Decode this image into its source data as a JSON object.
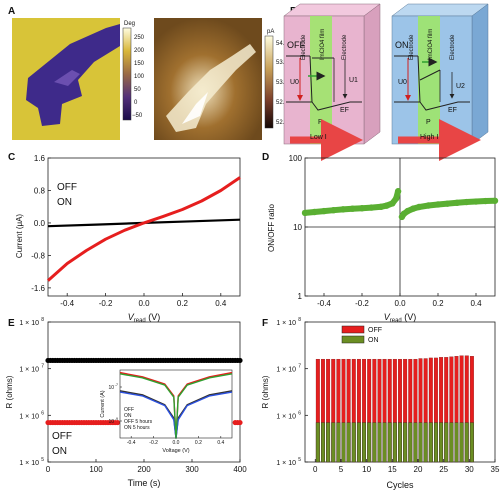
{
  "panel_letters": [
    "A",
    "B",
    "C",
    "D",
    "E",
    "F"
  ],
  "panel_a": {
    "phase_colorbar": {
      "unit": "Deg",
      "ticks": [
        "250",
        "200",
        "150",
        "100",
        "50",
        "0",
        "−50"
      ]
    },
    "current_colorbar": {
      "unit": "pA",
      "ticks": [
        "54.0",
        "53.5",
        "53.0",
        "52.5",
        "52.0"
      ]
    }
  },
  "panel_b": {
    "off": {
      "state": "OFF",
      "layers": [
        "Electrode",
        "ImClO4 film",
        "Electrode"
      ],
      "u0": "U0",
      "u1": "U1",
      "ef": "EF",
      "p": "P",
      "current": "Low I",
      "fill_color": "#e8b4cf"
    },
    "on": {
      "state": "ON",
      "layers": [
        "Electrode",
        "ImClO4 film",
        "Electrode"
      ],
      "u0": "U0",
      "u2": "U2",
      "ef": "EF",
      "p": "P",
      "current": "High I",
      "fill_color": "#9cc4e8"
    },
    "accent_green": "#9ee56a",
    "arrow_red": "#e84545"
  },
  "chart_data": [
    {
      "panel": "C",
      "type": "line",
      "xlabel": "V",
      "xlabel_sub": "read",
      "xlabel_unit": " (V)",
      "ylabel": "Current (μA)",
      "xlim": [
        -0.5,
        0.5
      ],
      "ylim": [
        -1.8,
        1.6
      ],
      "xticks": [
        "-0.4",
        "-0.2",
        "0.0",
        "0.2",
        "0.4"
      ],
      "yticks": [
        "1.6",
        "0.8",
        "0.0",
        "-0.8",
        "-1.6"
      ],
      "legend": [
        "OFF",
        "ON"
      ],
      "series": [
        {
          "name": "OFF",
          "color": "#000000",
          "x": [
            -0.5,
            -0.25,
            0.0,
            0.25,
            0.5
          ],
          "y": [
            -0.08,
            -0.04,
            0.0,
            0.04,
            0.08
          ]
        },
        {
          "name": "ON",
          "color": "#e61e1e",
          "x": [
            -0.5,
            -0.4,
            -0.3,
            -0.2,
            -0.1,
            0.0,
            0.1,
            0.2,
            0.3,
            0.4,
            0.5
          ],
          "y": [
            -1.42,
            -1.0,
            -0.68,
            -0.4,
            -0.18,
            0.0,
            0.16,
            0.33,
            0.54,
            0.8,
            1.12
          ]
        }
      ]
    },
    {
      "panel": "D",
      "type": "scatter",
      "xlabel": "V",
      "xlabel_sub": "read",
      "xlabel_unit": " (V)",
      "ylabel": "ON/OFF ratio",
      "xlim": [
        -0.5,
        0.5
      ],
      "ylim": [
        1,
        100
      ],
      "yscale": "log",
      "xticks": [
        "-0.4",
        "-0.2",
        "0.0",
        "0.2",
        "0.4"
      ],
      "yticks": [
        "100",
        "10",
        "1"
      ],
      "series": [
        {
          "color": "#5aaf32",
          "x": [
            -0.5,
            -0.45,
            -0.4,
            -0.35,
            -0.3,
            -0.25,
            -0.2,
            -0.15,
            -0.1,
            -0.07,
            -0.04,
            -0.02,
            -0.01
          ],
          "y": [
            16,
            16.5,
            17,
            17.5,
            18,
            18.4,
            18.7,
            19.1,
            19.6,
            20.4,
            22,
            26,
            33
          ]
        },
        {
          "color": "#5aaf32",
          "x": [
            0.01,
            0.02,
            0.04,
            0.07,
            0.1,
            0.15,
            0.2,
            0.25,
            0.3,
            0.35,
            0.4,
            0.45,
            0.5
          ],
          "y": [
            14,
            15.5,
            17,
            18.5,
            19.5,
            20.5,
            21.2,
            21.8,
            22.4,
            23,
            23.4,
            23.8,
            24
          ]
        }
      ]
    },
    {
      "panel": "E",
      "type": "scatter",
      "xlabel": "Time (s)",
      "ylabel": "R (ohms)",
      "xlim": [
        0,
        400
      ],
      "ylim": [
        100000,
        100000000
      ],
      "yscale": "log",
      "xticks": [
        "0",
        "100",
        "200",
        "300",
        "400"
      ],
      "yticks": [
        "1 × 10",
        "1 × 10",
        "1 × 10",
        "1 × 10"
      ],
      "ytick_exponents": [
        "8",
        "7",
        "6",
        "5"
      ],
      "legend": [
        "OFF",
        "ON"
      ],
      "series": [
        {
          "name": "OFF",
          "color": "#000000",
          "x": [
            0,
            400
          ],
          "y": [
            15000000,
            15000000
          ]
        },
        {
          "name": "ON",
          "color": "#e61e1e",
          "x": [
            0,
            400
          ],
          "y": [
            700000,
            700000
          ]
        }
      ],
      "inset": {
        "type": "line",
        "xlabel": "Voltage (V)",
        "ylabel": "Current (A)",
        "xlim": [
          -0.5,
          0.5
        ],
        "ylim": [
          1e-10,
          1e-06
        ],
        "yscale": "log",
        "xticks": [
          "-0.4",
          "-0.2",
          "0.0",
          "0.2",
          "0.4"
        ],
        "yticks": [
          "10",
          "10"
        ],
        "ytick_exponents": [
          "-7",
          "-9"
        ],
        "legend": [
          "OFF",
          "ON",
          "OFF 5 hours",
          "ON  5 hours"
        ],
        "series": [
          {
            "name": "OFF",
            "color": "#333333",
            "x": [
              -0.5,
              -0.3,
              -0.1,
              -0.02,
              0.0,
              0.02,
              0.1,
              0.3,
              0.5
            ],
            "y": [
              6e-08,
              3.5e-08,
              9e-09,
              1.5e-09,
              1e-10,
              1.5e-09,
              9e-09,
              3.5e-08,
              6e-08
            ]
          },
          {
            "name": "ON",
            "color": "#e61e1e",
            "x": [
              -0.5,
              -0.3,
              -0.1,
              -0.02,
              0.0,
              0.02,
              0.1,
              0.3,
              0.5
            ],
            "y": [
              7e-07,
              4e-07,
              1.5e-07,
              3e-08,
              1e-10,
              3e-08,
              1.5e-07,
              4e-07,
              7e-07
            ]
          },
          {
            "name": "OFF 5 hours",
            "color": "#2b50e0",
            "x": [
              -0.5,
              -0.3,
              -0.1,
              -0.02,
              0.0,
              0.02,
              0.1,
              0.3,
              0.5
            ],
            "y": [
              5e-08,
              3e-08,
              8e-09,
              1.2e-09,
              1e-10,
              1.2e-09,
              8e-09,
              3e-08,
              5e-08
            ]
          },
          {
            "name": "ON  5 hours",
            "color": "#2fa02f",
            "x": [
              -0.5,
              -0.3,
              -0.1,
              -0.02,
              0.0,
              0.02,
              0.1,
              0.3,
              0.5
            ],
            "y": [
              6e-07,
              3.5e-07,
              1.3e-07,
              2.5e-08,
              1e-10,
              2.5e-08,
              1.3e-07,
              3.5e-07,
              6e-07
            ]
          }
        ]
      }
    },
    {
      "panel": "F",
      "type": "bar",
      "xlabel": "Cycles",
      "ylabel": "R (ohms)",
      "xlim": [
        -2,
        35
      ],
      "ylim": [
        100000,
        100000000
      ],
      "yscale": "log",
      "xticks": [
        "0",
        "5",
        "10",
        "15",
        "20",
        "25",
        "30",
        "35"
      ],
      "yticks": [
        "1 × 10",
        "1 × 10",
        "1 × 10",
        "1 × 10"
      ],
      "ytick_exponents": [
        "8",
        "7",
        "6",
        "5"
      ],
      "legend": [
        "OFF",
        "ON"
      ],
      "categories": [
        1,
        2,
        3,
        4,
        5,
        6,
        7,
        8,
        9,
        10,
        11,
        12,
        13,
        14,
        15,
        16,
        17,
        18,
        19,
        20,
        21,
        22,
        23,
        24,
        25,
        26,
        27,
        28,
        29,
        30,
        31
      ],
      "series": [
        {
          "name": "OFF",
          "color": "#e61e1e",
          "values": [
            16000000,
            16000000,
            16000000,
            16000000,
            16000000,
            16000000,
            16000000,
            16000000,
            16000000,
            16000000,
            16000000,
            16000000,
            16000000,
            16000000,
            16000000,
            16000000,
            16000000,
            16000000,
            16000000,
            16000000,
            16500000,
            16500000,
            17000000,
            17000000,
            17500000,
            17500000,
            18000000,
            18500000,
            19000000,
            19000000,
            18500000
          ]
        },
        {
          "name": "ON",
          "color": "#6b8e23",
          "values": [
            700000,
            700000,
            700000,
            700000,
            700000,
            700000,
            700000,
            700000,
            700000,
            700000,
            700000,
            700000,
            700000,
            700000,
            700000,
            700000,
            700000,
            700000,
            700000,
            700000,
            700000,
            700000,
            700000,
            700000,
            700000,
            700000,
            700000,
            700000,
            700000,
            700000,
            700000
          ]
        }
      ]
    }
  ]
}
